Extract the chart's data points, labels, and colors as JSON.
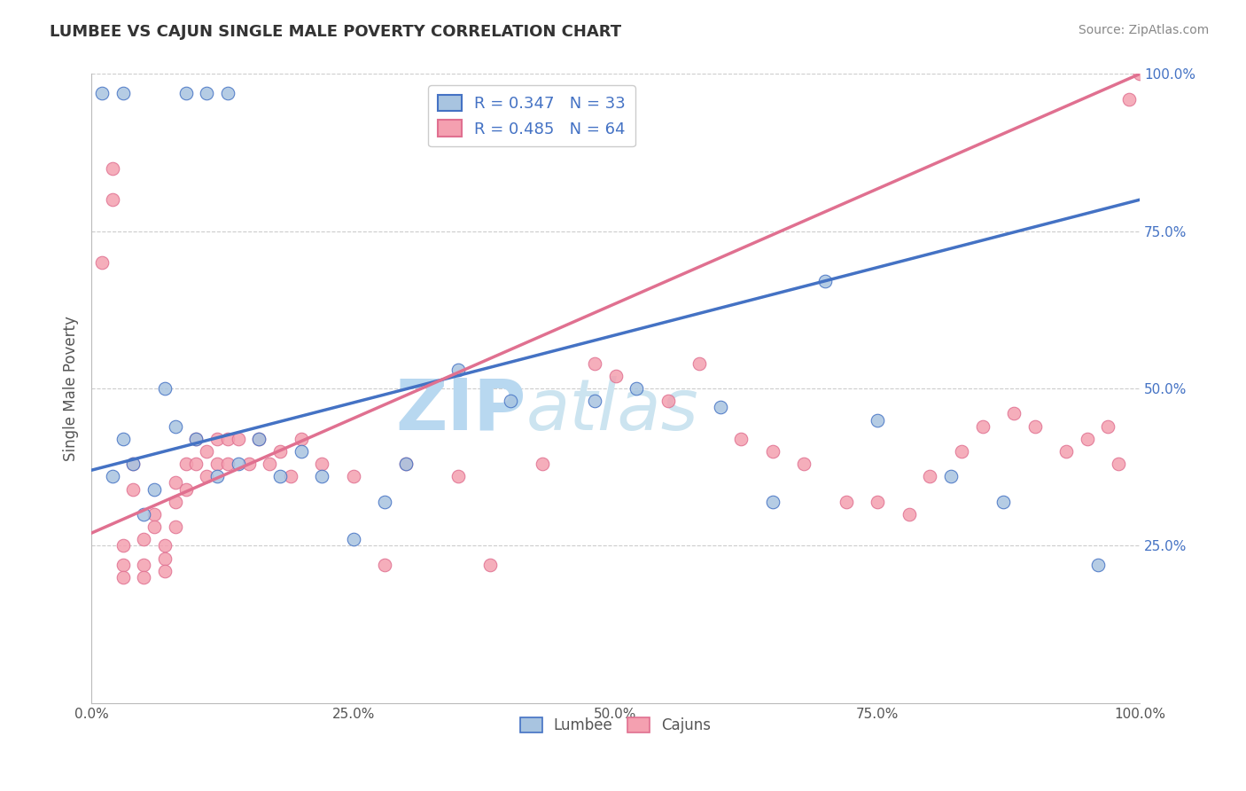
{
  "title": "LUMBEE VS CAJUN SINGLE MALE POVERTY CORRELATION CHART",
  "source_text": "Source: ZipAtlas.com",
  "ylabel": "Single Male Poverty",
  "xlim": [
    0,
    1
  ],
  "ylim": [
    0,
    1
  ],
  "xticks": [
    0,
    0.25,
    0.5,
    0.75,
    1.0
  ],
  "xtick_labels": [
    "0.0%",
    "25.0%",
    "50.0%",
    "75.0%",
    "100.0%"
  ],
  "right_yticks": [
    0.25,
    0.5,
    0.75,
    1.0
  ],
  "right_ytick_labels": [
    "25.0%",
    "50.0%",
    "75.0%",
    "100.0%"
  ],
  "lumbee_color": "#a8c4e0",
  "cajun_color": "#f4a0b0",
  "lumbee_line_color": "#4472c4",
  "cajun_line_color": "#e07090",
  "lumbee_R": 0.347,
  "lumbee_N": 33,
  "cajun_R": 0.485,
  "cajun_N": 64,
  "background_color": "#ffffff",
  "grid_color": "#cccccc",
  "watermark_text": "ZIPatlas",
  "watermark_color": "#cde8f5",
  "lumbee_x": [
    0.01,
    0.03,
    0.09,
    0.11,
    0.13,
    0.02,
    0.03,
    0.04,
    0.05,
    0.06,
    0.07,
    0.08,
    0.1,
    0.12,
    0.14,
    0.16,
    0.18,
    0.2,
    0.22,
    0.25,
    0.28,
    0.3,
    0.35,
    0.4,
    0.48,
    0.52,
    0.6,
    0.65,
    0.7,
    0.75,
    0.82,
    0.87,
    0.96
  ],
  "lumbee_y": [
    0.97,
    0.97,
    0.97,
    0.97,
    0.97,
    0.36,
    0.42,
    0.38,
    0.3,
    0.34,
    0.5,
    0.44,
    0.42,
    0.36,
    0.38,
    0.42,
    0.36,
    0.4,
    0.36,
    0.26,
    0.32,
    0.38,
    0.53,
    0.48,
    0.48,
    0.5,
    0.47,
    0.32,
    0.67,
    0.45,
    0.36,
    0.32,
    0.22
  ],
  "cajun_x": [
    0.01,
    0.02,
    0.02,
    0.03,
    0.03,
    0.03,
    0.04,
    0.04,
    0.05,
    0.05,
    0.05,
    0.06,
    0.06,
    0.07,
    0.07,
    0.07,
    0.08,
    0.08,
    0.08,
    0.09,
    0.09,
    0.1,
    0.1,
    0.11,
    0.11,
    0.12,
    0.12,
    0.13,
    0.13,
    0.14,
    0.15,
    0.16,
    0.17,
    0.18,
    0.19,
    0.2,
    0.22,
    0.25,
    0.28,
    0.3,
    0.35,
    0.38,
    0.43,
    0.48,
    0.5,
    0.55,
    0.58,
    0.62,
    0.65,
    0.68,
    0.72,
    0.75,
    0.78,
    0.8,
    0.83,
    0.85,
    0.88,
    0.9,
    0.93,
    0.95,
    0.97,
    0.98,
    0.99,
    1.0
  ],
  "cajun_y": [
    0.7,
    0.8,
    0.85,
    0.25,
    0.22,
    0.2,
    0.38,
    0.34,
    0.26,
    0.22,
    0.2,
    0.3,
    0.28,
    0.25,
    0.23,
    0.21,
    0.35,
    0.32,
    0.28,
    0.38,
    0.34,
    0.42,
    0.38,
    0.4,
    0.36,
    0.42,
    0.38,
    0.42,
    0.38,
    0.42,
    0.38,
    0.42,
    0.38,
    0.4,
    0.36,
    0.42,
    0.38,
    0.36,
    0.22,
    0.38,
    0.36,
    0.22,
    0.38,
    0.54,
    0.52,
    0.48,
    0.54,
    0.42,
    0.4,
    0.38,
    0.32,
    0.32,
    0.3,
    0.36,
    0.4,
    0.44,
    0.46,
    0.44,
    0.4,
    0.42,
    0.44,
    0.38,
    0.96,
    1.0
  ],
  "legend_lumbee_label": "R = 0.347   N = 33",
  "legend_cajun_label": "R = 0.485   N = 64",
  "title_color": "#333333",
  "axis_label_color": "#555555",
  "tick_color": "#555555",
  "lumbee_line_intercept": 0.37,
  "lumbee_line_end": 0.8,
  "cajun_line_intercept": 0.27,
  "cajun_line_end": 1.0
}
